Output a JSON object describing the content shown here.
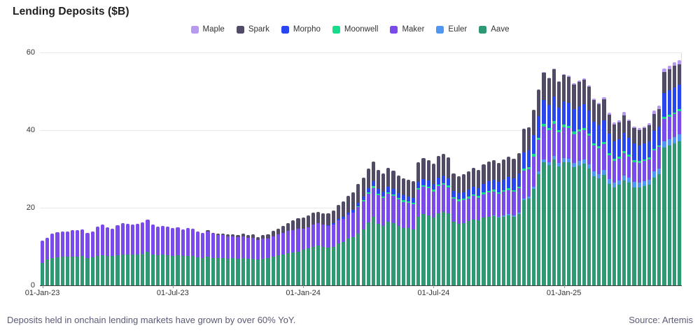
{
  "title": "Lending Deposits ($B)",
  "footer": {
    "caption": "Deposits held in onchain lending markets have grown by over 60% YoY.",
    "source": "Source: Artemis"
  },
  "colors": {
    "maple": "#b79af0",
    "spark": "#524b66",
    "morpho": "#2a46f0",
    "moonwell": "#16dc8c",
    "maker": "#7a4bea",
    "euler": "#4f97f0",
    "aave": "#2e9973",
    "gridline": "#e8e8e8",
    "axis_line": "#3d3d3d",
    "text": "#333333"
  },
  "chart_data": {
    "type": "bar",
    "stacked": true,
    "title": "Lending Deposits ($B)",
    "xlabel": "",
    "ylabel": "",
    "frequency": "weekly",
    "num_bars": 128,
    "ylim": [
      0,
      60
    ],
    "yticks": [
      0,
      20,
      40,
      60
    ],
    "grid": "horizontal",
    "legend_position": "top-center",
    "legend_order": [
      "Maple",
      "Spark",
      "Morpho",
      "Moonwell",
      "Maker",
      "Euler",
      "Aave"
    ],
    "stack_order_bottom_to_top": [
      "Aave",
      "Euler",
      "Maker",
      "Moonwell",
      "Morpho",
      "Spark",
      "Maple"
    ],
    "x_tick_labels": [
      "01-Jan-23",
      "01-Jul-23",
      "01-Jan-24",
      "01-Jul-24",
      "01-Jan-25"
    ],
    "x_tick_week_indexes": [
      0,
      26,
      52,
      78,
      104
    ],
    "series": [
      {
        "name": "Aave",
        "color_key": "aave",
        "values": [
          5.8,
          6.6,
          7.0,
          7.2,
          7.3,
          7.3,
          7.4,
          7.4,
          7.5,
          7.0,
          7.2,
          7.6,
          7.8,
          7.6,
          7.5,
          7.8,
          8.0,
          8.0,
          7.9,
          8.0,
          8.2,
          8.6,
          8.0,
          7.8,
          7.9,
          7.8,
          7.6,
          7.7,
          7.5,
          7.6,
          7.5,
          7.2,
          7.0,
          7.4,
          7.1,
          7.0,
          7.0,
          6.9,
          7.0,
          6.9,
          7.0,
          6.8,
          6.9,
          6.6,
          6.9,
          7.0,
          7.4,
          7.7,
          8.0,
          8.3,
          8.5,
          8.7,
          9.2,
          9.5,
          10.0,
          10.2,
          9.9,
          9.7,
          10.0,
          10.8,
          11.2,
          12.0,
          12.4,
          13.4,
          14.5,
          16.2,
          17.6,
          15.9,
          15.3,
          16.4,
          16.1,
          15.3,
          14.8,
          14.7,
          14.4,
          17.7,
          18.3,
          18.0,
          17.4,
          18.6,
          19.0,
          18.5,
          16.4,
          15.9,
          16.1,
          16.5,
          17.0,
          16.7,
          17.4,
          17.7,
          17.8,
          17.4,
          17.7,
          18.1,
          17.7,
          18.3,
          21.9,
          22.3,
          24.8,
          28.6,
          31.7,
          31.0,
          32.4,
          30.6,
          31.8,
          31.7,
          30.5,
          30.9,
          31.3,
          30.1,
          28.2,
          27.6,
          28.5,
          26.2,
          25.3,
          25.9,
          27.0,
          26.4,
          25.3,
          25.2,
          25.5,
          25.9,
          27.8,
          28.6,
          35.5,
          36.0,
          36.5,
          37.2
        ]
      },
      {
        "name": "Euler",
        "color_key": "euler",
        "values": [
          0,
          0,
          0,
          0,
          0,
          0,
          0,
          0,
          0,
          0,
          0,
          0,
          0,
          0,
          0,
          0,
          0,
          0,
          0,
          0,
          0,
          0,
          0,
          0,
          0,
          0,
          0,
          0,
          0,
          0,
          0,
          0,
          0,
          0,
          0,
          0,
          0,
          0,
          0,
          0,
          0,
          0,
          0,
          0,
          0,
          0,
          0,
          0,
          0,
          0,
          0,
          0,
          0,
          0,
          0,
          0,
          0,
          0,
          0,
          0,
          0,
          0,
          0,
          0,
          0,
          0,
          0,
          0,
          0,
          0,
          0,
          0,
          0,
          0,
          0,
          0,
          0,
          0,
          0,
          0,
          0,
          0,
          0,
          0,
          0,
          0,
          0,
          0,
          0,
          0,
          0.2,
          0.2,
          0.3,
          0.3,
          0.4,
          0.4,
          0.5,
          0.5,
          0.6,
          0.7,
          0.8,
          0.8,
          0.9,
          0.9,
          1.0,
          1.0,
          1.0,
          1.1,
          1.1,
          1.1,
          1.1,
          1.1,
          1.2,
          1.2,
          1.2,
          1.2,
          1.3,
          1.3,
          1.3,
          1.3,
          1.4,
          1.4,
          1.5,
          1.5,
          1.6,
          1.6,
          1.7,
          1.7
        ]
      },
      {
        "name": "Maker",
        "color_key": "maker",
        "values": [
          5.7,
          5.6,
          6.4,
          6.5,
          6.5,
          6.6,
          6.9,
          6.9,
          6.9,
          6.5,
          6.6,
          7.6,
          7.8,
          7.4,
          7.1,
          7.7,
          8.0,
          7.9,
          7.8,
          7.8,
          8.0,
          8.3,
          7.6,
          7.4,
          7.5,
          7.4,
          7.2,
          7.3,
          7.0,
          7.1,
          7.1,
          6.7,
          6.5,
          6.5,
          6.2,
          5.9,
          6.0,
          5.7,
          5.7,
          5.5,
          5.6,
          5.4,
          5.4,
          5.1,
          5.1,
          5.1,
          5.3,
          5.4,
          5.5,
          5.7,
          5.8,
          5.9,
          5.4,
          5.5,
          5.7,
          5.8,
          5.7,
          5.6,
          5.7,
          5.9,
          6.0,
          6.2,
          6.4,
          6.8,
          7.1,
          7.4,
          7.5,
          7.3,
          7.2,
          7.2,
          7.0,
          6.8,
          6.7,
          6.6,
          6.5,
          7.0,
          7.1,
          7.0,
          6.8,
          7.0,
          7.0,
          6.8,
          5.9,
          5.8,
          5.8,
          5.9,
          6.0,
          5.9,
          6.1,
          6.2,
          6.2,
          6.0,
          6.1,
          6.2,
          6.1,
          6.3,
          7.2,
          7.2,
          7.8,
          8.2,
          8.4,
          8.2,
          8.4,
          7.9,
          8.0,
          7.8,
          7.5,
          7.6,
          7.6,
          7.3,
          6.8,
          6.6,
          6.7,
          6.1,
          5.6,
          5.6,
          5.8,
          5.5,
          5.2,
          5.1,
          5.1,
          5.2,
          5.4,
          5.5,
          5.8,
          5.8,
          5.9,
          6.0
        ]
      },
      {
        "name": "Moonwell",
        "color_key": "moonwell",
        "values": [
          0,
          0,
          0,
          0,
          0,
          0,
          0,
          0,
          0,
          0,
          0,
          0,
          0,
          0,
          0,
          0,
          0,
          0,
          0,
          0,
          0,
          0,
          0,
          0,
          0,
          0,
          0,
          0,
          0,
          0,
          0,
          0,
          0,
          0,
          0,
          0,
          0,
          0,
          0,
          0,
          0,
          0,
          0,
          0,
          0,
          0,
          0,
          0,
          0,
          0,
          0,
          0,
          0,
          0,
          0,
          0,
          0,
          0,
          0,
          0,
          0,
          0,
          0,
          0.2,
          0.3,
          0.3,
          0.4,
          0.4,
          0.4,
          0.4,
          0.4,
          0.4,
          0.4,
          0.4,
          0.4,
          0.4,
          0.4,
          0.4,
          0.4,
          0.4,
          0.4,
          0.4,
          0.4,
          0.4,
          0.4,
          0.4,
          0.4,
          0.4,
          0.4,
          0.4,
          0.4,
          0.4,
          0.4,
          0.4,
          0.4,
          0.5,
          0.5,
          0.5,
          0.6,
          0.6,
          0.7,
          0.6,
          0.7,
          0.6,
          0.6,
          0.6,
          0.6,
          0.6,
          0.6,
          0.6,
          0.5,
          0.5,
          0.5,
          0.5,
          0.5,
          0.5,
          0.5,
          0.5,
          0.5,
          0.5,
          0.5,
          0.5,
          0.5,
          0.5,
          0.5,
          0.5,
          0.5,
          0.5,
          0.5
        ]
      },
      {
        "name": "Morpho",
        "color_key": "morpho",
        "values": [
          0,
          0,
          0,
          0,
          0,
          0,
          0,
          0,
          0,
          0,
          0,
          0,
          0,
          0,
          0,
          0,
          0,
          0,
          0,
          0,
          0,
          0,
          0,
          0,
          0,
          0,
          0,
          0,
          0,
          0,
          0,
          0,
          0,
          0,
          0,
          0,
          0,
          0,
          0,
          0,
          0,
          0,
          0,
          0,
          0,
          0,
          0,
          0,
          0,
          0,
          0,
          0,
          0,
          0,
          0,
          0,
          0,
          0.2,
          0.3,
          0.4,
          0.5,
          0.6,
          0.7,
          0.9,
          1.0,
          1.2,
          1.4,
          1.3,
          1.3,
          1.4,
          1.4,
          1.3,
          1.3,
          1.2,
          1.2,
          1.5,
          1.6,
          1.6,
          1.6,
          1.8,
          1.9,
          1.8,
          1.6,
          1.6,
          1.7,
          1.8,
          2.0,
          2.0,
          2.3,
          2.5,
          2.6,
          2.6,
          2.8,
          3.0,
          3.0,
          3.3,
          4.2,
          4.3,
          5.0,
          5.6,
          6.1,
          5.9,
          6.2,
          5.8,
          6.0,
          6.0,
          5.8,
          5.9,
          6.0,
          5.9,
          5.6,
          5.4,
          5.6,
          5.1,
          4.6,
          4.4,
          4.6,
          4.3,
          4.2,
          4.0,
          4.1,
          4.2,
          4.6,
          4.8,
          6.2,
          6.3,
          6.4,
          6.4
        ]
      },
      {
        "name": "Spark",
        "color_key": "spark",
        "values": [
          0,
          0,
          0,
          0,
          0,
          0,
          0,
          0,
          0,
          0,
          0,
          0,
          0,
          0,
          0,
          0,
          0,
          0,
          0,
          0,
          0,
          0,
          0,
          0,
          0,
          0,
          0,
          0,
          0,
          0,
          0,
          0,
          0,
          0.3,
          0.3,
          0.4,
          0.4,
          0.5,
          0.5,
          0.6,
          0.7,
          0.7,
          0.8,
          0.8,
          1.0,
          1.1,
          1.3,
          1.5,
          1.8,
          2.1,
          2.4,
          2.7,
          2.9,
          3.0,
          3.0,
          3.0,
          2.9,
          3.1,
          3.3,
          3.6,
          4.0,
          4.3,
          4.4,
          4.8,
          4.8,
          5.0,
          5.0,
          4.8,
          4.7,
          4.8,
          4.7,
          4.5,
          4.4,
          4.3,
          4.3,
          5.2,
          5.4,
          5.3,
          5.2,
          5.5,
          5.6,
          5.4,
          4.6,
          4.5,
          4.6,
          4.7,
          4.8,
          4.7,
          5.0,
          5.1,
          5.1,
          5.0,
          5.1,
          5.2,
          5.1,
          5.3,
          6.0,
          6.0,
          6.4,
          6.8,
          7.0,
          6.8,
          7.0,
          6.6,
          6.8,
          6.6,
          6.3,
          6.4,
          6.4,
          6.1,
          5.6,
          5.4,
          5.5,
          4.9,
          4.3,
          4.4,
          4.6,
          4.3,
          4.0,
          3.9,
          3.9,
          4.0,
          4.4,
          4.6,
          5.4,
          5.4,
          5.5,
          5.2
        ]
      },
      {
        "name": "Maple",
        "color_key": "maple",
        "values": [
          0,
          0,
          0,
          0,
          0,
          0,
          0,
          0,
          0,
          0,
          0,
          0,
          0,
          0,
          0,
          0,
          0,
          0,
          0,
          0,
          0,
          0,
          0,
          0,
          0,
          0,
          0,
          0,
          0,
          0,
          0,
          0,
          0,
          0,
          0,
          0,
          0,
          0,
          0,
          0,
          0,
          0,
          0,
          0,
          0,
          0,
          0,
          0,
          0,
          0,
          0,
          0,
          0,
          0,
          0,
          0,
          0,
          0,
          0,
          0,
          0,
          0,
          0,
          0,
          0,
          0,
          0,
          0,
          0,
          0,
          0,
          0,
          0,
          0,
          0,
          0,
          0,
          0,
          0,
          0,
          0,
          0,
          0,
          0,
          0,
          0,
          0,
          0,
          0,
          0,
          0,
          0,
          0,
          0,
          0,
          0,
          0,
          0,
          0,
          0,
          0.2,
          0.2,
          0.3,
          0.3,
          0.3,
          0.3,
          0.3,
          0.3,
          0.4,
          0.4,
          0.4,
          0.4,
          0.5,
          0.5,
          0.5,
          0.5,
          0.9,
          0.5,
          0.5,
          0.5,
          0.5,
          0.6,
          0.8,
          0.8,
          0.9,
          0.9,
          1.0,
          1.0
        ]
      }
    ]
  }
}
